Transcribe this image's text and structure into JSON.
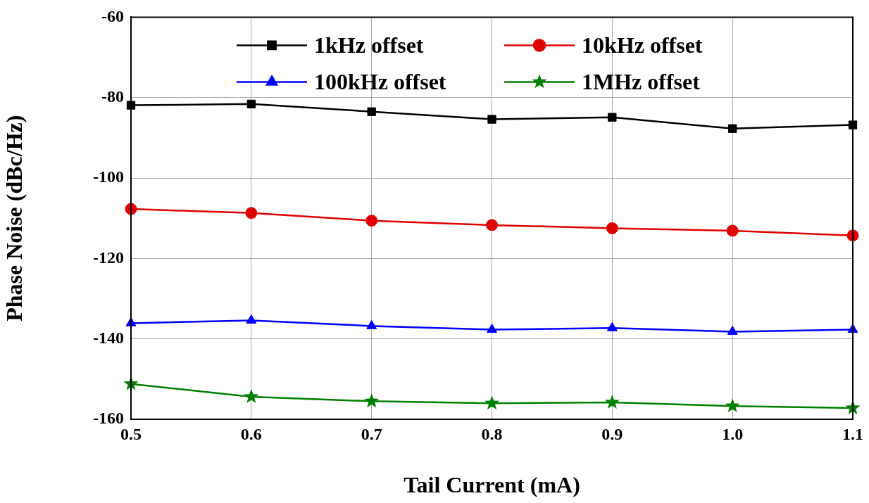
{
  "chart_data": {
    "type": "line",
    "xlabel": "Tail Current (mA)",
    "ylabel": "Phase Noise (dBc/Hz)",
    "x": [
      0.5,
      0.6,
      0.7,
      0.8,
      0.9,
      1.0,
      1.1
    ],
    "series": [
      {
        "name": "1kHz offset",
        "color": "#000000",
        "marker": "square",
        "values": [
          -81.9,
          -81.6,
          -83.5,
          -85.4,
          -84.9,
          -87.7,
          -86.8
        ]
      },
      {
        "name": "10kHz offset",
        "color": "#e00000",
        "marker": "circle",
        "values": [
          -107.7,
          -108.7,
          -110.6,
          -111.7,
          -112.5,
          -113.1,
          -114.3
        ]
      },
      {
        "name": "100kHz offset",
        "color": "#0000ff",
        "marker": "triangle",
        "values": [
          -136.1,
          -135.4,
          -136.8,
          -137.7,
          -137.3,
          -138.2,
          -137.7
        ]
      },
      {
        "name": "1MHz offset",
        "color": "#008000",
        "marker": "star",
        "values": [
          -151.2,
          -154.4,
          -155.5,
          -156.0,
          -155.8,
          -156.7,
          -157.2
        ]
      }
    ],
    "xlim": [
      0.5,
      1.1
    ],
    "xticks": [
      0.5,
      0.6,
      0.7,
      0.8,
      0.9,
      {
        "value": 1.0,
        "label": "1.0"
      },
      1.1
    ],
    "ylim": [
      -160,
      -60
    ],
    "yticks": [
      -160,
      -140,
      -120,
      -100,
      -80,
      -60
    ],
    "grid": true,
    "legend": "top",
    "line_style": "solid"
  }
}
